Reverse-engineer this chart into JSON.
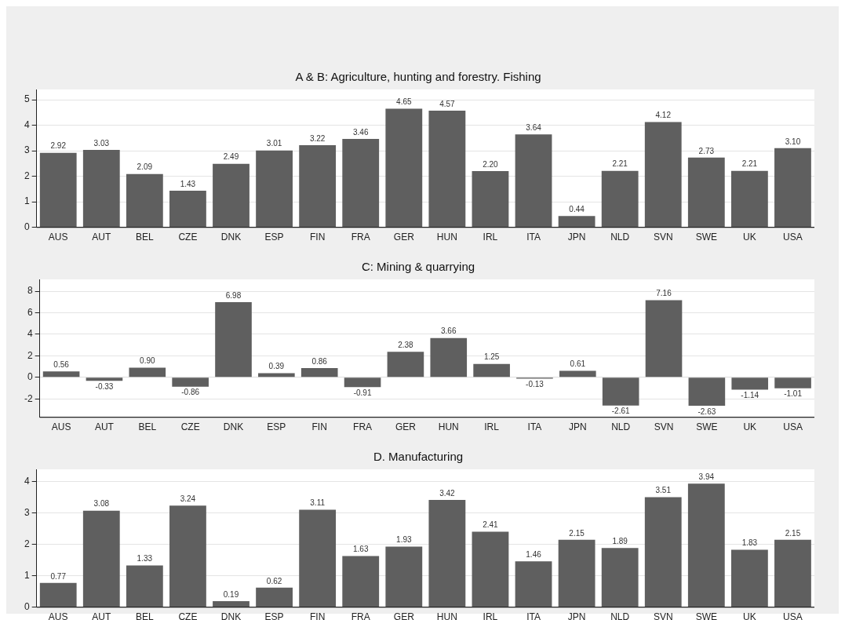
{
  "chart_data": [
    {
      "type": "bar",
      "title": "A & B: Agriculture, hunting and forestry. Fishing",
      "categories": [
        "AUS",
        "AUT",
        "BEL",
        "CZE",
        "DNK",
        "ESP",
        "FIN",
        "FRA",
        "GER",
        "HUN",
        "IRL",
        "ITA",
        "JPN",
        "NLD",
        "SVN",
        "SWE",
        "UK",
        "USA"
      ],
      "values": [
        2.92,
        3.03,
        2.09,
        1.43,
        2.49,
        3.01,
        3.22,
        3.46,
        4.65,
        4.57,
        2.2,
        3.64,
        0.44,
        2.21,
        4.12,
        2.73,
        2.21,
        3.1
      ],
      "value_labels": [
        "2.92",
        "3.03",
        "2.09",
        "1.43",
        "2.49",
        "3.01",
        "3.22",
        "3.46",
        "4.65",
        "4.57",
        "2.20",
        "3.64",
        "0.44",
        "2.21",
        "4.12",
        "2.73",
        "2.21",
        "3.10"
      ],
      "color": "#5f5f5f",
      "ylim": [
        0,
        5.4
      ],
      "yticks": [
        0,
        1,
        2,
        3,
        4,
        5
      ],
      "grid": "y",
      "legend": false
    },
    {
      "type": "bar",
      "title": "C: Mining & quarrying",
      "categories": [
        "AUS",
        "AUT",
        "BEL",
        "CZE",
        "DNK",
        "ESP",
        "FIN",
        "FRA",
        "GER",
        "HUN",
        "IRL",
        "ITA",
        "JPN",
        "NLD",
        "SVN",
        "SWE",
        "UK",
        "USA"
      ],
      "values": [
        0.56,
        -0.33,
        0.9,
        -0.86,
        6.98,
        0.39,
        0.86,
        -0.91,
        2.38,
        3.66,
        1.25,
        -0.13,
        0.61,
        -2.61,
        7.16,
        -2.63,
        -1.14,
        -1.01
      ],
      "value_labels": [
        "0.56",
        "-0.33",
        "0.90",
        "-0.86",
        "6.98",
        "0.39",
        "0.86",
        "-0.91",
        "2.38",
        "3.66",
        "1.25",
        "-0.13",
        "0.61",
        "-2.61",
        "7.16",
        "-2.63",
        "-1.14",
        "-1.01"
      ],
      "color": "#5f5f5f",
      "ylim": [
        -3.7,
        9.1
      ],
      "yticks": [
        -2,
        0,
        2,
        4,
        6,
        8
      ],
      "grid": "y",
      "legend": false
    },
    {
      "type": "bar",
      "title": "D. Manufacturing",
      "categories": [
        "AUS",
        "AUT",
        "BEL",
        "CZE",
        "DNK",
        "ESP",
        "FIN",
        "FRA",
        "GER",
        "HUN",
        "IRL",
        "ITA",
        "JPN",
        "NLD",
        "SVN",
        "SWE",
        "UK",
        "USA"
      ],
      "values": [
        0.77,
        3.08,
        1.33,
        3.24,
        0.19,
        0.62,
        3.11,
        1.63,
        1.93,
        3.42,
        2.41,
        1.46,
        2.15,
        1.89,
        3.51,
        3.94,
        1.83,
        2.15
      ],
      "value_labels": [
        "0.77",
        "3.08",
        "1.33",
        "3.24",
        "0.19",
        "0.62",
        "3.11",
        "1.63",
        "1.93",
        "3.42",
        "2.41",
        "1.46",
        "2.15",
        "1.89",
        "3.51",
        "3.94",
        "1.83",
        "2.15"
      ],
      "color": "#5f5f5f",
      "ylim": [
        0,
        4.4
      ],
      "yticks": [
        0,
        1,
        2,
        3,
        4
      ],
      "grid": "y",
      "legend": false
    }
  ]
}
